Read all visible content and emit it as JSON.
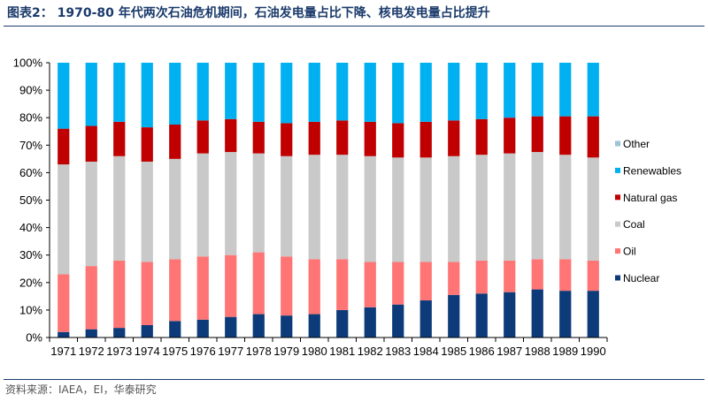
{
  "header": {
    "title": "图表2： 1970-80 年代两次石油危机期间，石油发电量占比下降、核电发电量占比提升"
  },
  "footer": {
    "source": "资料来源：IAEA，EI，华泰研究"
  },
  "chart_data": {
    "type": "bar",
    "stacked": true,
    "categories": [
      "1971",
      "1972",
      "1973",
      "1974",
      "1975",
      "1976",
      "1977",
      "1978",
      "1979",
      "1980",
      "1981",
      "1982",
      "1983",
      "1984",
      "1985",
      "1986",
      "1987",
      "1988",
      "1989",
      "1990"
    ],
    "ylim": [
      0,
      100
    ],
    "yticks": [
      "0%",
      "10%",
      "20%",
      "30%",
      "40%",
      "50%",
      "60%",
      "70%",
      "80%",
      "90%",
      "100%"
    ],
    "grid": false,
    "legend_position": "right",
    "series": [
      {
        "name": "Nuclear",
        "color": "#0d3b7a",
        "values": [
          2,
          3,
          3.5,
          4.5,
          6,
          6.5,
          7.5,
          8.5,
          8,
          8.5,
          10,
          11,
          12,
          13.5,
          15.5,
          16,
          16.5,
          17.5,
          17,
          17
        ]
      },
      {
        "name": "Oil",
        "color": "#ff7575",
        "values": [
          21,
          23,
          24.5,
          23,
          22.5,
          23,
          22.5,
          22.5,
          21.5,
          20,
          18.5,
          16.5,
          15.5,
          14,
          12,
          12,
          11.5,
          11,
          11.5,
          11
        ]
      },
      {
        "name": "Coal",
        "color": "#c9c9c9",
        "values": [
          40,
          38,
          38,
          36.5,
          36.5,
          37.5,
          37.5,
          36,
          36.5,
          38,
          38,
          38.5,
          38,
          38,
          38.5,
          38.5,
          39,
          39,
          38,
          37.5
        ]
      },
      {
        "name": "Natural gas",
        "color": "#c00000",
        "values": [
          13,
          13,
          12.5,
          12.5,
          12.5,
          12,
          12,
          11.5,
          12,
          12,
          12.5,
          12.5,
          12.5,
          13,
          13,
          13,
          13,
          13,
          14,
          15
        ]
      },
      {
        "name": "Renewables",
        "color": "#00b0f0",
        "values": [
          24,
          23,
          21.5,
          23.5,
          22.5,
          21,
          20.5,
          21.5,
          22,
          21.5,
          21,
          21.5,
          22,
          21.5,
          21,
          20.5,
          20,
          19.5,
          19.5,
          19.5
        ]
      },
      {
        "name": "Other",
        "color": "#9dc3d5",
        "values": [
          0,
          0,
          0,
          0,
          0,
          0,
          0,
          0,
          0,
          0,
          0,
          0,
          0,
          0,
          0,
          0,
          0,
          0,
          0,
          0
        ]
      }
    ]
  }
}
